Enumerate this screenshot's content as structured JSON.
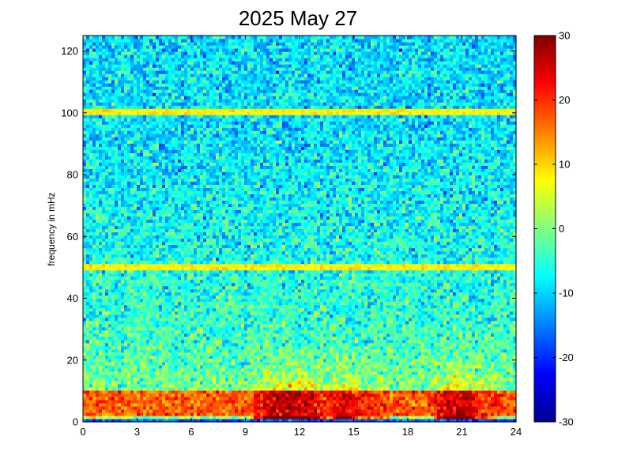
{
  "chart_data": {
    "type": "heatmap",
    "title": "2025 May 27",
    "xlabel": "",
    "ylabel": "frequency in mHz",
    "xlim": [
      0,
      24
    ],
    "ylim": [
      0,
      125
    ],
    "x_ticks": [
      "0",
      "3",
      "6",
      "9",
      "12",
      "15",
      "18",
      "21",
      "24"
    ],
    "y_ticks": [
      "0",
      "20",
      "40",
      "60",
      "80",
      "100",
      "120"
    ],
    "colorbar": {
      "range": [
        -30,
        30
      ],
      "ticks": [
        "-30",
        "-20",
        "-10",
        "0",
        "10",
        "20",
        "30"
      ],
      "colormap": "jet"
    },
    "features": {
      "background_level_high_freq": -10,
      "background_level_low_freq": 0,
      "lines": [
        {
          "frequency_mHz": 50,
          "level": 8
        },
        {
          "frequency_mHz": 100,
          "level": 8
        }
      ],
      "strong_band_mHz": [
        2,
        10
      ],
      "strong_band_level": 25,
      "peak_times_h": [
        10.5,
        11.5,
        12.5,
        14.5,
        20.3,
        21.2
      ]
    }
  }
}
